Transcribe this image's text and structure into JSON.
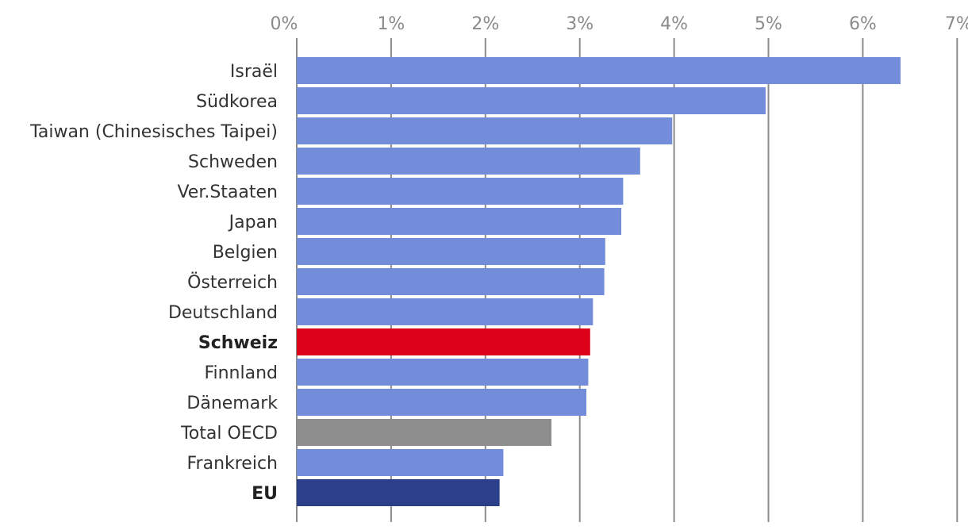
{
  "chart_data": {
    "type": "bar",
    "orientation": "horizontal",
    "title": "",
    "xlabel": "",
    "ylabel": "",
    "xlim": [
      0,
      7
    ],
    "x_ticks": [
      "0%",
      "1%",
      "2%",
      "3%",
      "4%",
      "5%",
      "6%",
      "7%"
    ],
    "x_tick_position": "top",
    "grid": true,
    "categories": [
      "Israël",
      "Südkorea",
      "Taiwan (Chinesisches Taipei)",
      "Schweden",
      "Ver.Staaten",
      "Japan",
      "Belgien",
      "Österreich",
      "Deutschland",
      "Schweiz",
      "Finnland",
      "Dänemark",
      "Total OECD",
      "Frankreich",
      "EU"
    ],
    "values": [
      6.4,
      4.97,
      3.98,
      3.64,
      3.46,
      3.44,
      3.27,
      3.26,
      3.14,
      3.11,
      3.09,
      3.07,
      2.7,
      2.19,
      2.15
    ],
    "bold_categories": [
      "Schweiz",
      "EU"
    ],
    "colors": {
      "default": "#738ddb",
      "highlight": "#dc001b",
      "oecd": "#8e8e8e",
      "eu": "#2b3f8a"
    },
    "bar_colors": [
      "default",
      "default",
      "default",
      "default",
      "default",
      "default",
      "default",
      "default",
      "default",
      "highlight",
      "default",
      "default",
      "oecd",
      "default",
      "eu"
    ]
  }
}
